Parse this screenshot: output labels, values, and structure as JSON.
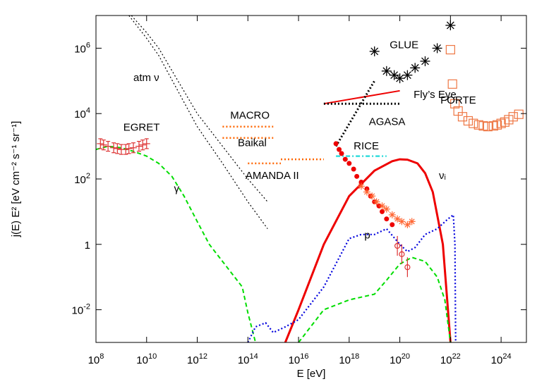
{
  "chart_data": {
    "type": "line",
    "xlabel": "E [eV]",
    "ylabel": "j(E) E² [eV cm⁻² s⁻¹ sr⁻¹]",
    "xscale": "log",
    "yscale": "log",
    "xlim": [
      100000000.0,
      1e+25
    ],
    "ylim": [
      0.001,
      10000000
    ],
    "grid": false,
    "legend": "none",
    "x_ticks": [
      {
        "base": "10",
        "exp": "8",
        "value": 100000000.0
      },
      {
        "base": "10",
        "exp": "10",
        "value": 10000000000.0
      },
      {
        "base": "10",
        "exp": "12",
        "value": 1000000000000.0
      },
      {
        "base": "10",
        "exp": "14",
        "value": 100000000000000.0
      },
      {
        "base": "10",
        "exp": "16",
        "value": 1e+16
      },
      {
        "base": "10",
        "exp": "18",
        "value": 1e+18
      },
      {
        "base": "10",
        "exp": "20",
        "value": 1e+20
      },
      {
        "base": "10",
        "exp": "22",
        "value": 1e+22
      },
      {
        "base": "10",
        "exp": "24",
        "value": 1e+24
      }
    ],
    "y_ticks": [
      {
        "base": "10",
        "exp": "-2",
        "value": 0.01
      },
      {
        "base": "1",
        "exp": "",
        "value": 1
      },
      {
        "base": "10",
        "exp": "2",
        "value": 100
      },
      {
        "base": "10",
        "exp": "4",
        "value": 10000
      },
      {
        "base": "10",
        "exp": "6",
        "value": 1000000
      }
    ],
    "annotations": [
      {
        "text": "atm ν",
        "x": 3000000000.0,
        "y": 100000.0
      },
      {
        "text": "EGRET",
        "x": 1200000000.0,
        "y": 3000
      },
      {
        "text": "γ",
        "x": 120000000000.0,
        "y": 40
      },
      {
        "text": "MACRO",
        "x": 20000000000000.0,
        "y": 7000
      },
      {
        "text": "Baikal",
        "x": 40000000000000.0,
        "y": 1000
      },
      {
        "text": "AMANDA II",
        "x": 80000000000000.0,
        "y": 100
      },
      {
        "text": "GLUE",
        "x": 4e+19,
        "y": 1000000
      },
      {
        "text": "Fly’s Eye",
        "x": 3.5e+20,
        "y": 30000
      },
      {
        "text": "FORTE",
        "x": 4e+21,
        "y": 20000
      },
      {
        "text": "AGASA",
        "x": 6e+18,
        "y": 4500
      },
      {
        "text": "RICE",
        "x": 1.5e+18,
        "y": 800
      },
      {
        "text": "νᵢ",
        "x": 3.5e+21,
        "y": 100
      },
      {
        "text": "p",
        "x": 4e+18,
        "y": 1.5
      }
    ],
    "series": [
      {
        "key": "atm1",
        "color": "#000000",
        "style": "dotted",
        "width": 1.2,
        "x": [
          2500000000.0,
          10000000000.0,
          30000000000.0,
          1000000000000.0,
          10000000000000.0,
          100000000000000.0,
          600000000000000.0
        ],
        "y": [
          10000000.0,
          3000000.0,
          1000000.0,
          10000.0,
          1000,
          100,
          20
        ]
      },
      {
        "key": "atm2",
        "color": "#000000",
        "style": "dotted",
        "width": 1.2,
        "x": [
          2000000000.0,
          10000000000.0,
          30000000000.0,
          1000000000000.0,
          10000000000000.0,
          100000000000000.0,
          600000000000000.0
        ],
        "y": [
          10000000.0,
          2000000.0,
          600000.0,
          4000,
          300,
          20,
          3
        ]
      },
      {
        "key": "gamma",
        "color": "#00dd00",
        "style": "dashed",
        "width": 2,
        "x": [
          100000000.0,
          300000000.0,
          1000000000.0,
          3000000000.0,
          10000000000.0,
          30000000000.0,
          100000000000.0,
          300000000000.0,
          1000000000000.0,
          3000000000000.0,
          10000000000000.0,
          30000000000000.0,
          60000000000000.0,
          100000000000000.0,
          200000000000000.0
        ],
        "y": [
          800,
          1000,
          900,
          700,
          500,
          300,
          120,
          30,
          5,
          1,
          0.3,
          0.1,
          0.05,
          0.008,
          0.001
        ]
      },
      {
        "key": "nu_i",
        "color": "#ee0000",
        "style": "solid",
        "width": 3,
        "x": [
          3000000000000000.0,
          1e+16,
          1e+17,
          1e+18,
          1e+19,
          5e+19,
          1e+20,
          2e+20,
          5e+20,
          1e+21,
          2e+21,
          5e+21,
          1e+22
        ],
        "y": [
          0.001,
          0.01,
          1,
          30,
          180,
          350,
          400,
          390,
          300,
          150,
          40,
          1,
          0.001
        ]
      },
      {
        "key": "p",
        "color": "#0000dd",
        "style": "dotted",
        "width": 2.2,
        "x": [
          100000000000000.0,
          200000000000000.0,
          500000000000000.0,
          1000000000000000.0,
          3000000000000000.0,
          1e+16,
          1e+17,
          1e+18,
          3e+18,
          1e+19,
          3e+19,
          1e+20,
          2e+20,
          4e+20,
          1e+21,
          3e+21,
          8e+21,
          1.3e+22,
          1.5e+22,
          1.6e+22
        ],
        "y": [
          0.001,
          0.003,
          0.004,
          0.002,
          0.003,
          0.005,
          0.05,
          1.5,
          2,
          2,
          3,
          1,
          0.6,
          0.8,
          2,
          3,
          6,
          8,
          1,
          0.001
        ]
      },
      {
        "key": "cosmo_gamma",
        "color": "#00dd00",
        "style": "dashed",
        "width": 2,
        "x": [
          1e+16,
          1e+17,
          1e+18,
          1e+19,
          3e+19,
          1e+20,
          3e+20,
          1e+21,
          3e+21,
          6e+21,
          1e+22
        ],
        "y": [
          0.001,
          0.01,
          0.02,
          0.03,
          0.08,
          0.25,
          0.4,
          0.3,
          0.1,
          0.02,
          0.001
        ]
      },
      {
        "key": "flys_eye",
        "color": "#ee0000",
        "style": "solid",
        "width": 2,
        "x": [
          1e+17,
          1e+20
        ],
        "y": [
          20000,
          50000
        ]
      },
      {
        "key": "agasa",
        "color": "#000000",
        "style": "dotted",
        "width": 3,
        "x": [
          1e+17,
          1e+20
        ],
        "y": [
          20000,
          20000
        ]
      },
      {
        "key": "glue_limit",
        "color": "#000000",
        "style": "dotted",
        "width": 3,
        "x": [
          3e+17,
          1e+19
        ],
        "y": [
          1000,
          100000.0
        ]
      },
      {
        "key": "rice",
        "color": "#33dddd",
        "style": "dashdot",
        "width": 2.5,
        "x": [
          3e+17,
          3e+19
        ],
        "y": [
          500,
          500
        ]
      },
      {
        "key": "macro",
        "color": "#ff6600",
        "style": "dotted",
        "width": 2.5,
        "x": [
          10000000000000.0,
          1000000000000000.0
        ],
        "y": [
          4000,
          4000
        ]
      },
      {
        "key": "baikal",
        "color": "#ff6600",
        "style": "dotted",
        "width": 2.5,
        "x": [
          10000000000000.0,
          1000000000000000.0
        ],
        "y": [
          1800,
          1800
        ]
      },
      {
        "key": "amanda",
        "color": "#ff6600",
        "style": "dotted",
        "width": 2.5,
        "x": [
          100000000000000.0,
          2000000000000000.0
        ],
        "y": [
          300,
          300
        ]
      },
      {
        "key": "amanda_hi",
        "color": "#ff6600",
        "style": "dotted",
        "width": 2.5,
        "x": [
          2000000000000000.0,
          1e+17
        ],
        "y": [
          400,
          400
        ]
      }
    ],
    "points": [
      {
        "key": "egret",
        "marker": "cross",
        "color": "#dd3333",
        "x": [
          150000000.0,
          200000000.0,
          300000000.0,
          500000000.0,
          700000000.0,
          1000000000.0,
          1500000000.0,
          2000000000.0,
          3000000000.0,
          5000000000.0,
          7000000000.0,
          10000000000.0
        ],
        "y": [
          1200,
          1100,
          1000,
          900,
          850,
          800,
          800,
          850,
          900,
          1000,
          1100,
          1200
        ]
      },
      {
        "key": "glue",
        "marker": "star",
        "color": "#000000",
        "x": [
          1e+19,
          3e+19,
          6e+19,
          1e+20,
          2e+20,
          4e+20,
          1e+21,
          3e+21,
          1e+22
        ],
        "y": [
          800000.0,
          200000.0,
          150000.0,
          120000.0,
          150000.0,
          250000.0,
          400000.0,
          1000000.0,
          5000000.0
        ]
      },
      {
        "key": "forte",
        "marker": "square",
        "color": "#ee7744",
        "x": [
          1e+22,
          1.2e+22,
          1.5e+22,
          2e+22,
          3e+22,
          5e+22,
          8e+22,
          1.3e+23,
          2e+23,
          3e+23,
          5e+23,
          7e+23,
          1e+24,
          1.4e+24,
          2e+24,
          3e+24,
          5e+24
        ],
        "y": [
          900000.0,
          80000,
          20000,
          12000,
          8000,
          6000,
          5000,
          4500,
          4200,
          4000,
          4200,
          4500,
          5000,
          5500,
          6500,
          8000,
          9500
        ]
      },
      {
        "key": "uhecr_red",
        "marker": "dot",
        "color": "#ee0000",
        "x": [
          3e+17,
          4e+17,
          5e+17,
          7e+17,
          1e+18,
          1.5e+18,
          2e+18,
          3e+18,
          5e+18,
          7e+18,
          1e+19,
          1.5e+19,
          2e+19,
          3e+19,
          5e+19
        ],
        "y": [
          1200,
          800,
          600,
          400,
          300,
          200,
          120,
          80,
          50,
          30,
          20,
          15,
          10,
          6,
          4
        ]
      },
      {
        "key": "uhecr_orange",
        "marker": "asterisk",
        "color": "#ff6633",
        "x": [
          3e+18,
          5e+18,
          8e+18,
          1.2e+19,
          2e+19,
          3e+19,
          5e+19,
          8e+19,
          1.2e+20,
          2e+20,
          3e+20
        ],
        "y": [
          60,
          40,
          30,
          20,
          15,
          12,
          8,
          6,
          5,
          4,
          5
        ]
      },
      {
        "key": "uhecr_tail",
        "marker": "circle",
        "color": "#dd3333",
        "x": [
          8e+19,
          1.2e+20,
          2e+20
        ],
        "y": [
          0.9,
          0.5,
          0.2
        ]
      }
    ]
  }
}
